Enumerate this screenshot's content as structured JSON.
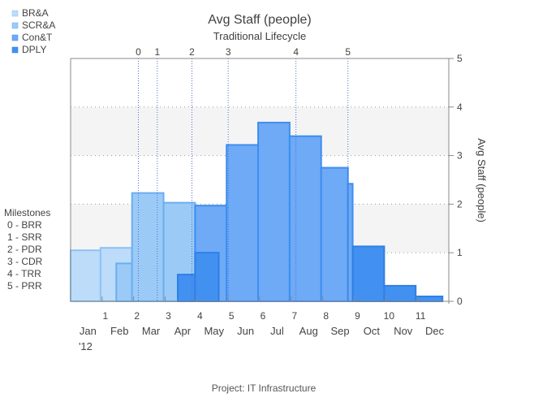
{
  "chart_data": {
    "type": "area",
    "title": "Avg Staff (people)",
    "subtitle": "Traditional Lifecycle",
    "ylabel": "Avg Staff (people)",
    "xlabel": "",
    "footer": "Project: IT Infrastructure",
    "xlim": [
      0,
      12
    ],
    "ylim": [
      0,
      5
    ],
    "y_ticks": [
      0,
      1,
      2,
      3,
      4,
      5
    ],
    "grid": "dotted horizontal at y-ticks; alternating light gray bands",
    "x_period_ticks": [
      {
        "x": 1,
        "label": "1"
      },
      {
        "x": 2,
        "label": "2"
      },
      {
        "x": 3,
        "label": "3"
      },
      {
        "x": 4,
        "label": "4"
      },
      {
        "x": 5,
        "label": "5"
      },
      {
        "x": 6,
        "label": "6"
      },
      {
        "x": 7,
        "label": "7"
      },
      {
        "x": 8,
        "label": "8"
      },
      {
        "x": 9,
        "label": "9"
      },
      {
        "x": 10,
        "label": "10"
      },
      {
        "x": 11,
        "label": "11"
      }
    ],
    "month_labels": [
      {
        "x": 0.5,
        "label": "Jan"
      },
      {
        "x": 1.5,
        "label": "Feb"
      },
      {
        "x": 2.5,
        "label": "Mar"
      },
      {
        "x": 3.5,
        "label": "Apr"
      },
      {
        "x": 4.5,
        "label": "May"
      },
      {
        "x": 5.5,
        "label": "Jun"
      },
      {
        "x": 6.5,
        "label": "Jul"
      },
      {
        "x": 7.5,
        "label": "Aug"
      },
      {
        "x": 8.5,
        "label": "Sep"
      },
      {
        "x": 9.5,
        "label": "Oct"
      },
      {
        "x": 10.5,
        "label": "Nov"
      },
      {
        "x": 11.5,
        "label": "Dec"
      }
    ],
    "year_label": {
      "x": 0.5,
      "label": "'12"
    },
    "milestones": [
      {
        "x": 2.15,
        "label": "0"
      },
      {
        "x": 2.75,
        "label": "1"
      },
      {
        "x": 3.85,
        "label": "2"
      },
      {
        "x": 5.0,
        "label": "3"
      },
      {
        "x": 7.15,
        "label": "4"
      },
      {
        "x": 8.8,
        "label": "5"
      }
    ],
    "milestone_legend": {
      "title": "Milestones",
      "items": [
        "0 - BRR",
        "1 - SRR",
        "2 - PDR",
        "3 - CDR",
        "4 - TRR",
        "5 - PRR"
      ]
    },
    "series": [
      {
        "name": "BR&A",
        "color": "#bcdcfa",
        "stroke": "#8ec2f2",
        "steps": [
          {
            "x0": 0.0,
            "x1": 0.95,
            "y": 1.05
          },
          {
            "x0": 0.95,
            "x1": 1.95,
            "y": 1.1
          },
          {
            "x0": 1.95,
            "x1": 2.2,
            "y": 0.45
          }
        ]
      },
      {
        "name": "SCR&A",
        "color": "#9ccaf6",
        "stroke": "#6aaef0",
        "steps": [
          {
            "x0": 1.45,
            "x1": 1.95,
            "y": 0.78
          },
          {
            "x0": 1.95,
            "x1": 2.95,
            "y": 2.23
          },
          {
            "x0": 2.95,
            "x1": 3.95,
            "y": 2.03
          }
        ]
      },
      {
        "name": "Con&T",
        "color": "#6eaaf5",
        "stroke": "#3d8ef0",
        "steps": [
          {
            "x0": 3.95,
            "x1": 4.95,
            "y": 1.97
          },
          {
            "x0": 4.95,
            "x1": 5.95,
            "y": 3.22
          },
          {
            "x0": 5.95,
            "x1": 6.95,
            "y": 3.68
          },
          {
            "x0": 6.95,
            "x1": 7.95,
            "y": 3.4
          },
          {
            "x0": 7.95,
            "x1": 8.8,
            "y": 2.75
          },
          {
            "x0": 8.8,
            "x1": 8.95,
            "y": 2.42
          }
        ]
      },
      {
        "name": "DPLY",
        "color": "#4291f0",
        "stroke": "#2f7fe6",
        "steps": [
          {
            "x0": 3.4,
            "x1": 3.95,
            "y": 0.55
          },
          {
            "x0": 3.95,
            "x1": 4.7,
            "y": 1.0
          },
          {
            "x0": 8.95,
            "x1": 9.95,
            "y": 1.13
          },
          {
            "x0": 9.95,
            "x1": 10.95,
            "y": 0.32
          },
          {
            "x0": 10.95,
            "x1": 11.8,
            "y": 0.1
          }
        ]
      }
    ]
  }
}
